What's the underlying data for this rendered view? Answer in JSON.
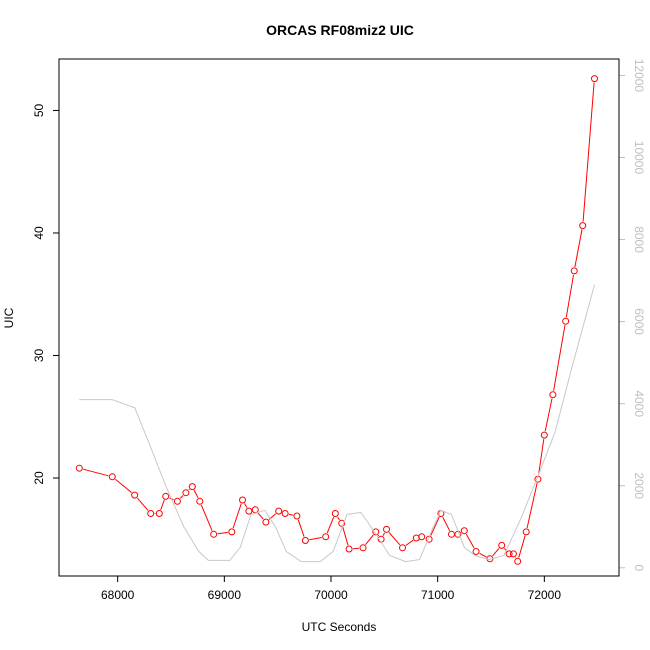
{
  "chart_data": {
    "type": "line",
    "title": "ORCAS RF08miz2 UIC",
    "xlabel": "UTC Seconds",
    "ylabel": "UIC",
    "xlim": [
      67450,
      72700
    ],
    "ylim": [
      12,
      54.2
    ],
    "y2lim": [
      -200,
      12400
    ],
    "x_ticks": [
      68000,
      69000,
      70000,
      71000,
      72000
    ],
    "y_ticks": [
      20,
      30,
      40,
      50
    ],
    "y2_ticks": [
      0,
      2000,
      4000,
      6000,
      8000,
      10000,
      12000
    ],
    "series": [
      {
        "color": "#ff0000",
        "axis": "left",
        "marker": "open-circle",
        "x": [
          67640,
          67950,
          68160,
          68310,
          68390,
          68450,
          68560,
          68640,
          68700,
          68770,
          68900,
          69070,
          69170,
          69230,
          69290,
          69390,
          69510,
          69570,
          69680,
          69760,
          69950,
          70040,
          70100,
          70170,
          70300,
          70420,
          70470,
          70520,
          70670,
          70800,
          70850,
          70920,
          71030,
          71130,
          71190,
          71250,
          71360,
          71490,
          71600,
          71670,
          71710,
          71750,
          71830,
          71940,
          72000,
          72080,
          72200,
          72280,
          72360,
          72470
        ],
        "y": [
          20.8,
          20.1,
          18.6,
          17.1,
          17.1,
          18.5,
          18.1,
          18.8,
          19.3,
          18.1,
          15.4,
          15.6,
          18.2,
          17.3,
          17.4,
          16.4,
          17.3,
          17.1,
          16.9,
          14.9,
          15.2,
          17.1,
          16.3,
          14.2,
          14.3,
          15.6,
          15.0,
          15.8,
          14.3,
          15.1,
          15.2,
          15.0,
          17.1,
          15.4,
          15.4,
          15.7,
          14.0,
          13.4,
          14.5,
          13.8,
          13.8,
          13.2,
          15.6,
          19.9,
          23.5,
          26.8,
          32.8,
          36.9,
          40.6,
          52.6
        ]
      },
      {
        "color": "#c8c8c8",
        "axis": "right",
        "marker": "none",
        "x": [
          67640,
          67950,
          68160,
          68300,
          68450,
          68620,
          68760,
          68850,
          69050,
          69150,
          69250,
          69380,
          69480,
          69580,
          69720,
          69900,
          70020,
          70150,
          70280,
          70400,
          70550,
          70700,
          70830,
          70960,
          71030,
          71130,
          71250,
          71350,
          71480,
          71620,
          71780,
          71950,
          72100,
          72250,
          72470
        ],
        "y": [
          4100,
          4100,
          3900,
          3000,
          2000,
          1000,
          400,
          180,
          180,
          500,
          1300,
          1400,
          1000,
          400,
          150,
          150,
          400,
          1300,
          1350,
          900,
          300,
          150,
          200,
          1000,
          1400,
          1300,
          500,
          300,
          200,
          300,
          1200,
          2300,
          3300,
          4800,
          6900
        ]
      }
    ]
  }
}
